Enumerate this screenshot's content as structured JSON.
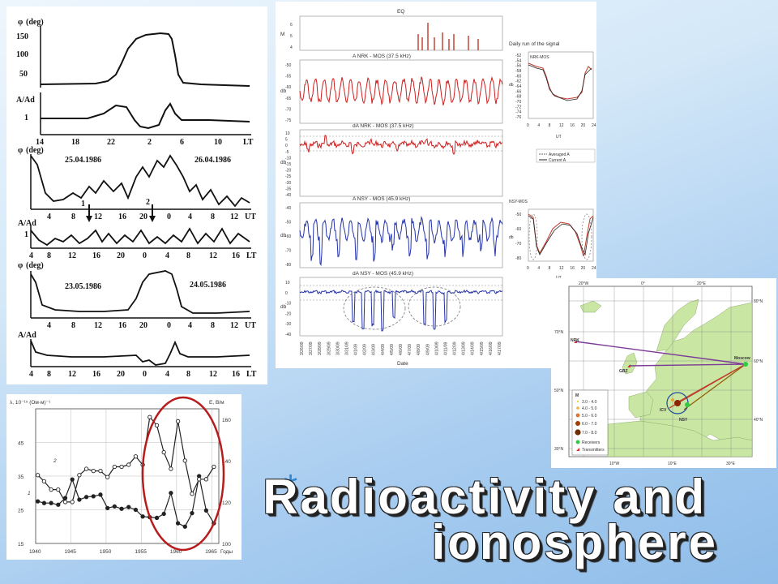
{
  "slide": {
    "title_star": "*",
    "title_line1": "Radioactivity and",
    "title_line2": "ionosphere"
  },
  "phase_panel": {
    "phi_label": "(deg)",
    "amp_label": "A/Ad",
    "phi_symbol": "φ",
    "y1_ticks": [
      "150",
      "100",
      "50"
    ],
    "a1_tick": "1",
    "x1_ticks": [
      "14",
      "18",
      "22",
      "2",
      "6",
      "10"
    ],
    "x1_unit": "LT",
    "date1": "25.04.1986",
    "date2": "26.04.1986",
    "marker1": "1",
    "marker2": "2",
    "x2_ticks": [
      "4",
      "8",
      "12",
      "16",
      "20",
      "0",
      "4",
      "8",
      "12"
    ],
    "x2_unit": "UT",
    "a2_tick": "1",
    "x3_ticks": [
      "4",
      "8",
      "12",
      "16",
      "20",
      "0",
      "4",
      "8",
      "12",
      "16"
    ],
    "x3_unit": "LT",
    "date3": "23.05.1986",
    "date4": "24.05.1986",
    "x4_ticks": [
      "4",
      "8",
      "12",
      "16",
      "20",
      "0",
      "4",
      "8",
      "12"
    ],
    "x4_unit": "UT",
    "x5_ticks": [
      "4",
      "8",
      "12",
      "16",
      "20",
      "0",
      "4",
      "8",
      "12",
      "16"
    ],
    "x5_unit": "LT"
  },
  "vlf_panel": {
    "eq_title": "EQ",
    "eq_ylabel": "M",
    "eq_ticks": [
      "6",
      "5",
      "4"
    ],
    "p1_title": "A  NRK - MOS (37.5 kHz)",
    "p2_title": "dA  NRK - MOS (37.5 kHz)",
    "p3_title": "A  NSY - MOS (45.9 kHz)",
    "p4_title": "dA  NSY - MOS (45.9 kHz)",
    "db_label": "db",
    "p1_ticks": [
      "-50",
      "-55",
      "-60",
      "-65",
      "-70",
      "-75"
    ],
    "p2_ticks": [
      "10",
      "5",
      "0",
      "-5",
      "-10",
      "-15",
      "-20",
      "-25",
      "-30",
      "-35",
      "-40"
    ],
    "p3_ticks": [
      "-40",
      "-50",
      "-60",
      "-70",
      "-80"
    ],
    "p4_ticks": [
      "10",
      "0",
      "-10",
      "-20",
      "-30",
      "-40"
    ],
    "dates": [
      "3/26/09",
      "3/27/09",
      "3/28/09",
      "3/29/09",
      "3/30/09",
      "3/31/09",
      "4/1/09",
      "4/2/09",
      "4/3/09",
      "4/4/09",
      "4/5/09",
      "4/6/09",
      "4/7/09",
      "4/8/09",
      "4/9/09",
      "4/10/09",
      "4/11/09",
      "4/12/09",
      "4/13/09",
      "4/14/09",
      "4/15/09",
      "4/16/09",
      "4/17/09"
    ],
    "x_label": "Date",
    "daily_title": "Daily run of the signal",
    "nrk_mos": "NRK-MOS",
    "nsy_mos": "NSY-MOS",
    "daily1_ticks": [
      "-52",
      "-54",
      "-56",
      "-58",
      "-60",
      "-62",
      "-64",
      "-66",
      "-68",
      "-70",
      "-72",
      "-74",
      "-76"
    ],
    "daily2_ticks": [
      "-50",
      "-60",
      "-70",
      "-80"
    ],
    "daily_x_ticks": [
      "0",
      "4",
      "8",
      "12",
      "16",
      "20",
      "24"
    ],
    "ut_label": "UT",
    "legend_avg": "Averaged A",
    "legend_cur": "Current A"
  },
  "lambda_panel": {
    "y_left_label": "λ, 10⁻¹⁵ (Ом·м)⁻¹",
    "y_right_label": "E, В/м",
    "y_left_ticks": [
      "45",
      "35",
      "25",
      "15"
    ],
    "y_right_ticks": [
      "160",
      "140",
      "120",
      "100"
    ],
    "x_ticks": [
      "1940",
      "1945",
      "1950",
      "1955",
      "1960",
      "1965"
    ],
    "x_unit": "Годы",
    "curve1_label": "1",
    "curve2_label": "2"
  },
  "map_panel": {
    "lat_labels": [
      "80°N",
      "70°N",
      "60°N",
      "50°N",
      "40°N",
      "30°N"
    ],
    "lon_labels": [
      "20°W",
      "10°W",
      "0°",
      "10°E",
      "20°E",
      "30°E"
    ],
    "stations": {
      "nrk": "NRK",
      "gbz": "GBZ",
      "moscow": "Moscow",
      "icv": "ICV",
      "nsy": "NSY"
    },
    "legend_title": "M",
    "legend_items": [
      "3.0 - 4.0",
      "4.0 - 5.0",
      "5.0 - 6.0",
      "6.0 - 7.0",
      "7.0 - 8.0",
      "Receivers",
      "Transmitters"
    ],
    "colors": {
      "land": "#c9e6a3",
      "sea": "#ffffff",
      "path_red": "#c0392b",
      "path_purple": "#7d3c98",
      "receiver": "#2ecc40",
      "transmitter": "#d63031"
    }
  },
  "chart_data": [
    {
      "type": "line",
      "title": "",
      "xlabel": "Годы",
      "ylabel": "λ, 10⁻¹⁵ (Ом·м)⁻¹",
      "y2label": "E, В/м",
      "xlim": [
        1940,
        1966
      ],
      "ylim": [
        15,
        55
      ],
      "y2lim": [
        100,
        165
      ],
      "series": [
        {
          "name": "1",
          "axis": "left",
          "x": [
            1940.3,
            1941.2,
            1942.2,
            1943.2,
            1944.2,
            1945.2,
            1946.2,
            1947.2,
            1948.2,
            1949.2,
            1950.2,
            1951.2,
            1952.2,
            1953.2,
            1954.2,
            1955.2,
            1956.2,
            1957.2,
            1958.2,
            1959.2,
            1960.2,
            1961.2,
            1962.2,
            1963.2,
            1964.2,
            1965.3
          ],
          "y": [
            27.5,
            27,
            27,
            26.5,
            28.5,
            34,
            28,
            28.8,
            29,
            29.5,
            25.5,
            26,
            25.3,
            25.8,
            25,
            23,
            22.8,
            22.6,
            23.8,
            30,
            21,
            20,
            24,
            35,
            24.8,
            21
          ]
        },
        {
          "name": "2",
          "axis": "right",
          "x": [
            1940.3,
            1941.2,
            1942.2,
            1943.2,
            1944.2,
            1945.2,
            1946.2,
            1947.2,
            1948.2,
            1949.2,
            1950.2,
            1951.2,
            1952.2,
            1953.2,
            1954.2,
            1955.2,
            1956.2,
            1957.2,
            1958.2,
            1959.2,
            1960.2,
            1961.2,
            1962.2,
            1963.2,
            1964.2,
            1965.3
          ],
          "y": [
            133,
            130,
            126,
            126,
            120,
            120,
            133,
            136,
            135,
            135,
            132,
            137,
            137,
            138,
            142,
            138,
            161,
            157,
            144,
            136,
            159,
            140,
            124,
            131,
            131,
            137
          ]
        }
      ]
    }
  ]
}
